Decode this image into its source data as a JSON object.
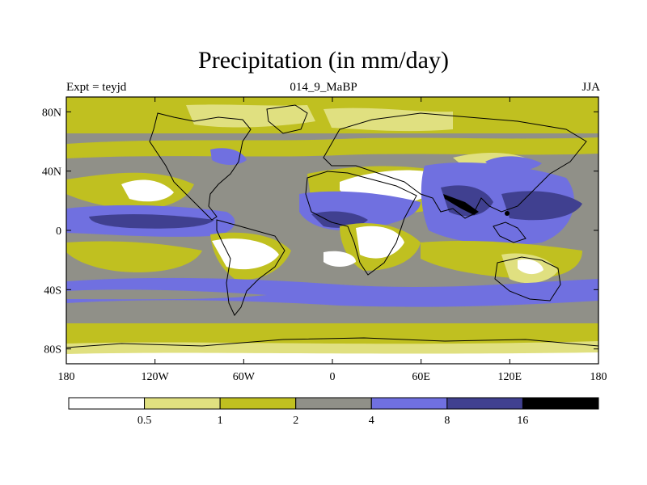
{
  "title": "Precipitation (in mm/day)",
  "left_label": "Expt = teyjd",
  "center_label": "014_9_MaBP",
  "right_label": "JJA",
  "chart_data": {
    "type": "heatmap",
    "variable": "Precipitation",
    "units": "mm/day",
    "season": "JJA",
    "xlim": [
      -180,
      180
    ],
    "ylim": [
      -90,
      90
    ],
    "x_ticks": [
      {
        "value": -180,
        "label": "180"
      },
      {
        "value": -120,
        "label": "120W"
      },
      {
        "value": -60,
        "label": "60W"
      },
      {
        "value": 0,
        "label": "0"
      },
      {
        "value": 60,
        "label": "60E"
      },
      {
        "value": 120,
        "label": "120E"
      },
      {
        "value": 180,
        "label": "180"
      }
    ],
    "y_ticks": [
      {
        "value": 80,
        "label": "80N"
      },
      {
        "value": 40,
        "label": "40N"
      },
      {
        "value": 0,
        "label": "0"
      },
      {
        "value": -40,
        "label": "40S"
      },
      {
        "value": -80,
        "label": "80S"
      }
    ],
    "colorbar": {
      "levels": [
        "0.5",
        "1",
        "2",
        "4",
        "8",
        "16"
      ],
      "colors": [
        "#ffffff",
        "#e0e080",
        "#c0c020",
        "#909088",
        "#7070e0",
        "#404090",
        "#000000"
      ]
    }
  }
}
